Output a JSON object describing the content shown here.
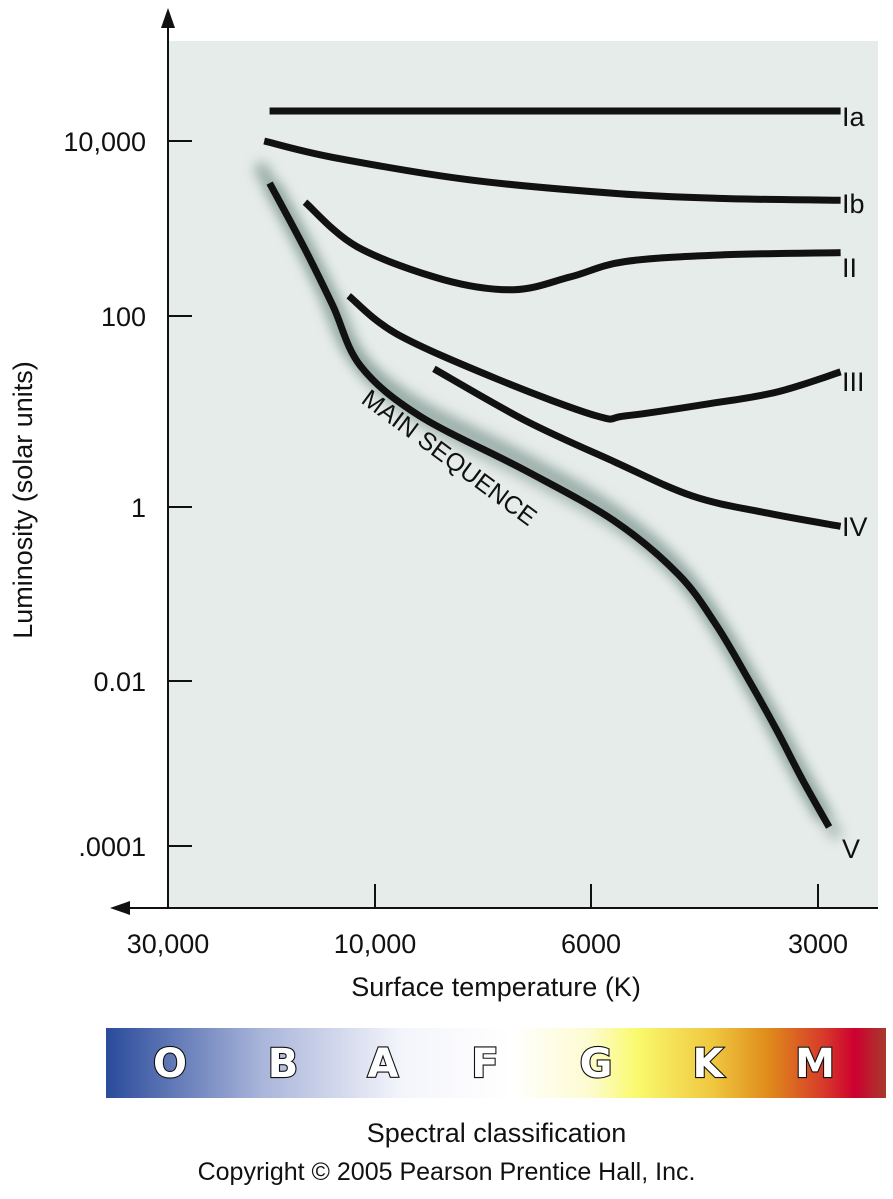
{
  "chart_data": {
    "type": "line",
    "title": "",
    "xlabel": "Surface temperature (K)",
    "ylabel": "Luminosity (solar units)",
    "x_scale": "log",
    "y_scale": "log",
    "x_reversed": true,
    "x_ticks": [
      {
        "value": 30000,
        "label": "30,000"
      },
      {
        "value": 10000,
        "label": "10,000"
      },
      {
        "value": 6000,
        "label": "6000"
      },
      {
        "value": 3000,
        "label": "3000"
      }
    ],
    "y_ticks": [
      {
        "value": 10000,
        "label": "10,000"
      },
      {
        "value": 100,
        "label": "100"
      },
      {
        "value": 1,
        "label": "1"
      },
      {
        "value": 0.01,
        "label": "0.01"
      },
      {
        "value": 0.0001,
        "label": ".0001"
      }
    ],
    "xlim": [
      40000,
      2600
    ],
    "ylim": [
      1e-05,
      500000
    ],
    "grid": false,
    "background_color": "#e6ecea",
    "series": [
      {
        "name": "Ia",
        "label": "Ia",
        "points": [
          [
            17500,
            22000
          ],
          [
            2800,
            22000
          ]
        ]
      },
      {
        "name": "Ib",
        "label": "Ib",
        "points": [
          [
            18000,
            10000
          ],
          [
            12500,
            6500
          ],
          [
            8000,
            3600
          ],
          [
            5500,
            2500
          ],
          [
            4000,
            2200
          ],
          [
            2800,
            2100
          ]
        ]
      },
      {
        "name": "II",
        "label": "II",
        "points": [
          [
            14500,
            2000
          ],
          [
            11000,
            620
          ],
          [
            8500,
            260
          ],
          [
            7200,
            200
          ],
          [
            6300,
            280
          ],
          [
            5400,
            420
          ],
          [
            4000,
            500
          ],
          [
            2800,
            530
          ]
        ]
      },
      {
        "name": "III",
        "label": "III",
        "points": [
          [
            11500,
            170
          ],
          [
            9500,
            65
          ],
          [
            7500,
            22
          ],
          [
            5900,
            9
          ],
          [
            5400,
            9
          ],
          [
            4200,
            12
          ],
          [
            3400,
            16
          ],
          [
            2800,
            26
          ]
        ]
      },
      {
        "name": "IV",
        "label": "IV",
        "points": [
          [
            8700,
            28
          ],
          [
            7000,
            8
          ],
          [
            5600,
            3
          ],
          [
            4400,
            1.3
          ],
          [
            3500,
            0.85
          ],
          [
            2800,
            0.6
          ]
        ]
      },
      {
        "name": "V",
        "label": "V",
        "main_sequence": true,
        "annotation": "MAIN SEQUENCE",
        "points": [
          [
            17500,
            3300
          ],
          [
            14500,
            580
          ],
          [
            12500,
            130
          ],
          [
            10800,
            30
          ],
          [
            9000,
            9
          ],
          [
            7000,
            2.4
          ],
          [
            5600,
            0.7
          ],
          [
            4600,
            0.17
          ],
          [
            4100,
            0.045
          ],
          [
            3700,
            0.01
          ],
          [
            3400,
            0.0025
          ],
          [
            3150,
            0.00065
          ],
          [
            2900,
            0.00017
          ]
        ]
      }
    ],
    "spectral_classes": [
      "O",
      "B",
      "A",
      "F",
      "G",
      "K",
      "M"
    ],
    "spectral_title": "Spectral classification"
  },
  "copyright": "Copyright © 2005 Pearson Prentice Hall, Inc.",
  "colors": {
    "plot_bg": "#e6ecea",
    "line": "#111111",
    "glow": "#7e9690",
    "spectrum": [
      "#2a4b9b",
      "#a9b5da",
      "#ffffff",
      "#fffbe0",
      "#fafa6e",
      "#df8a1b",
      "#cd0030",
      "#a83a2c"
    ]
  }
}
